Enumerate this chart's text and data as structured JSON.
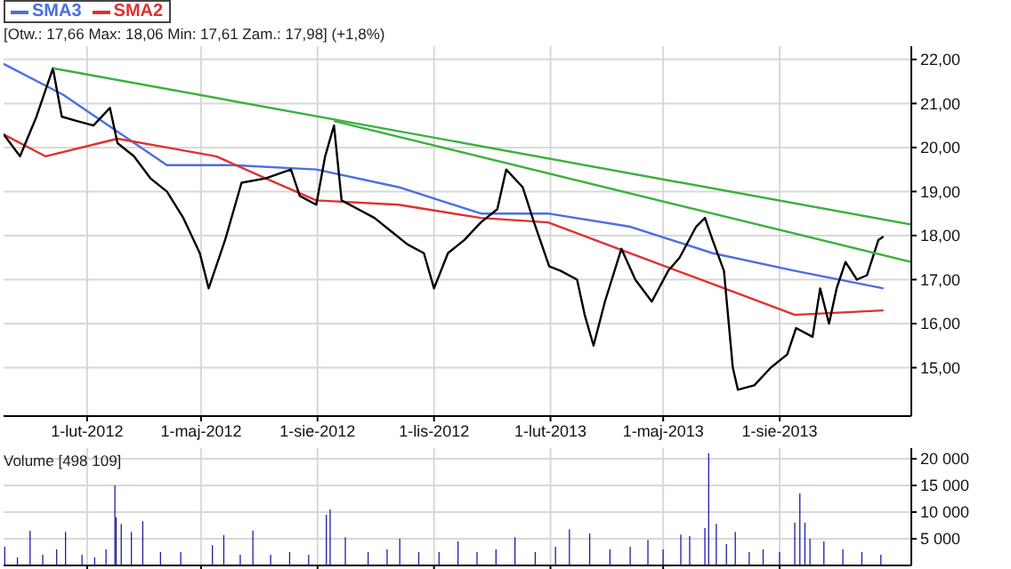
{
  "chart_data": [
    {
      "type": "line",
      "subtitle": "[Otw.: 17,66  Max: 18,06  Min: 17,61  Zam.: 17,98] (+1,8%)",
      "legend": "top left",
      "grid": true,
      "xlim": [
        "2011-11-27",
        "2013-11-13"
      ],
      "xticks": [
        {
          "value": "2012-02-01",
          "label": "1-lut-2012"
        },
        {
          "value": "2012-05-01",
          "label": "1-maj-2012"
        },
        {
          "value": "2012-08-01",
          "label": "1-sie-2012"
        },
        {
          "value": "2012-11-01",
          "label": "1-lis-2012"
        },
        {
          "value": "2013-02-01",
          "label": "1-lut-2013"
        },
        {
          "value": "2013-05-01",
          "label": "1-maj-2013"
        },
        {
          "value": "2013-08-01",
          "label": "1-sie-2013"
        }
      ],
      "ylim": [
        13.9,
        22.3
      ],
      "yticks": [
        {
          "value": 15,
          "label": "15,00"
        },
        {
          "value": 16,
          "label": "16,00"
        },
        {
          "value": 17,
          "label": "17,00"
        },
        {
          "value": 18,
          "label": "18,00"
        },
        {
          "value": 19,
          "label": "19,00"
        },
        {
          "value": 20,
          "label": "20,00"
        },
        {
          "value": 21,
          "label": "21,00"
        },
        {
          "value": 22,
          "label": "22,00"
        }
      ],
      "series": [
        {
          "name": "SMA3",
          "color": "#4a6fe0",
          "x": [
            "2011-11-27",
            "2012-01-13",
            "2012-04-04",
            "2012-05-26",
            "2012-07-31",
            "2012-10-04",
            "2012-12-08",
            "2013-01-30",
            "2013-04-05",
            "2013-06-09",
            "2013-08-13",
            "2013-10-22"
          ],
          "values": [
            21.9,
            21.2,
            19.6,
            19.6,
            19.5,
            19.1,
            18.5,
            18.5,
            18.2,
            17.6,
            17.2,
            16.8
          ]
        },
        {
          "name": "SMA2",
          "color": "#e03030",
          "x": [
            "2011-11-27",
            "2011-12-30",
            "2012-02-25",
            "2012-04-04",
            "2012-05-13",
            "2012-06-21",
            "2012-07-31",
            "2012-10-04",
            "2012-12-08",
            "2013-01-30",
            "2013-04-05",
            "2013-06-09",
            "2013-08-13",
            "2013-10-22"
          ],
          "values": [
            20.3,
            19.8,
            20.2,
            20.0,
            19.8,
            19.3,
            18.8,
            18.7,
            18.4,
            18.3,
            17.6,
            16.9,
            16.2,
            16.3
          ]
        },
        {
          "color": "#000000",
          "x": [
            "2011-11-27",
            "2011-12-10",
            "2011-12-23",
            "2012-01-05",
            "2012-01-12",
            "2012-01-24",
            "2012-02-06",
            "2012-02-19",
            "2012-02-25",
            "2012-03-09",
            "2012-03-22",
            "2012-04-04",
            "2012-04-17",
            "2012-04-30",
            "2012-05-07",
            "2012-05-20",
            "2012-06-02",
            "2012-06-21",
            "2012-07-11",
            "2012-07-18",
            "2012-07-31",
            "2012-08-07",
            "2012-08-14",
            "2012-08-20",
            "2012-09-02",
            "2012-09-15",
            "2012-09-28",
            "2012-10-11",
            "2012-10-24",
            "2012-11-01",
            "2012-11-12",
            "2012-11-25",
            "2012-12-08",
            "2012-12-21",
            "2012-12-28",
            "2013-01-10",
            "2013-01-19",
            "2013-01-31",
            "2013-02-09",
            "2013-02-22",
            "2013-02-28",
            "2013-03-07",
            "2013-03-16",
            "2013-03-29",
            "2013-04-09",
            "2013-04-22",
            "2013-05-05",
            "2013-05-14",
            "2013-05-27",
            "2013-06-03",
            "2013-06-09",
            "2013-06-18",
            "2013-06-25",
            "2013-06-29",
            "2013-07-12",
            "2013-07-25",
            "2013-08-07",
            "2013-08-14",
            "2013-08-27",
            "2013-09-02",
            "2013-09-09",
            "2013-09-15",
            "2013-09-22",
            "2013-10-01",
            "2013-10-09",
            "2013-10-18",
            "2013-10-22"
          ],
          "values": [
            20.3,
            19.8,
            20.7,
            21.8,
            20.7,
            20.6,
            20.5,
            20.9,
            20.1,
            19.8,
            19.3,
            19.0,
            18.4,
            17.6,
            16.8,
            17.9,
            19.2,
            19.3,
            19.5,
            18.9,
            18.7,
            19.8,
            20.5,
            18.8,
            18.6,
            18.4,
            18.1,
            17.8,
            17.6,
            16.8,
            17.6,
            17.9,
            18.3,
            18.6,
            19.5,
            19.1,
            18.3,
            17.3,
            17.2,
            17.0,
            16.2,
            15.5,
            16.5,
            17.7,
            17.0,
            16.5,
            17.2,
            17.5,
            18.2,
            18.4,
            17.9,
            17.2,
            15.0,
            14.5,
            14.6,
            15.0,
            15.3,
            15.9,
            15.7,
            16.8,
            16.0,
            16.8,
            17.4,
            17.0,
            17.1,
            17.9,
            17.98
          ]
        },
        {
          "color": "#3cb03c",
          "x": [
            "2012-01-05",
            "2013-11-13"
          ],
          "values": [
            21.8,
            18.25
          ]
        },
        {
          "color": "#3cb03c",
          "x": [
            "2012-08-14",
            "2013-11-13"
          ],
          "values": [
            20.6,
            17.4
          ]
        }
      ]
    },
    {
      "type": "bar",
      "title": "Volume [498 109]",
      "grid": true,
      "tick_labels": "y",
      "color": "#1a1aa8",
      "xlim": [
        "2011-11-27",
        "2013-11-13"
      ],
      "xticks": [
        {
          "value": "2012-02-01",
          "label": null
        },
        {
          "value": "2012-05-01",
          "label": null
        },
        {
          "value": "2012-08-01",
          "label": null
        },
        {
          "value": "2012-11-01",
          "label": null
        },
        {
          "value": "2013-02-01",
          "label": null
        },
        {
          "value": "2013-05-01",
          "label": null
        },
        {
          "value": "2013-08-01",
          "label": null
        }
      ],
      "ylim": [
        0,
        22000
      ],
      "yticks": [
        {
          "value": 5000,
          "label": "5 000"
        },
        {
          "value": 10000,
          "label": "10 000"
        },
        {
          "value": 15000,
          "label": "15 000"
        },
        {
          "value": 20000,
          "label": "20 000"
        }
      ],
      "x": [
        "2011-11-28",
        "2011-12-08",
        "2011-12-18",
        "2011-12-28",
        "2012-01-08",
        "2012-01-15",
        "2012-01-28",
        "2012-02-07",
        "2012-02-16",
        "2012-02-23",
        "2012-02-24",
        "2012-02-28",
        "2012-03-07",
        "2012-03-16",
        "2012-03-30",
        "2012-04-15",
        "2012-05-10",
        "2012-05-19",
        "2012-06-01",
        "2012-06-11",
        "2012-06-25",
        "2012-07-10",
        "2012-07-25",
        "2012-08-08",
        "2012-08-11",
        "2012-08-23",
        "2012-09-10",
        "2012-09-25",
        "2012-10-05",
        "2012-10-20",
        "2012-11-05",
        "2012-11-20",
        "2012-12-05",
        "2012-12-20",
        "2013-01-04",
        "2013-01-20",
        "2013-02-05",
        "2013-02-16",
        "2013-03-04",
        "2013-03-20",
        "2013-04-05",
        "2013-04-19",
        "2013-05-01",
        "2013-05-15",
        "2013-05-22",
        "2013-06-03",
        "2013-06-06",
        "2013-06-12",
        "2013-06-20",
        "2013-06-27",
        "2013-07-08",
        "2013-07-19",
        "2013-08-01",
        "2013-08-13",
        "2013-08-17",
        "2013-08-21",
        "2013-08-25",
        "2013-09-05",
        "2013-09-20",
        "2013-10-05",
        "2013-10-20"
      ],
      "values": [
        3500,
        1500,
        6500,
        2000,
        3000,
        6300,
        2000,
        1500,
        3000,
        15000,
        9000,
        7800,
        6300,
        8300,
        2500,
        2500,
        3800,
        5700,
        2000,
        6500,
        2000,
        2500,
        2000,
        9500,
        10500,
        5300,
        2500,
        3000,
        5000,
        2500,
        2500,
        4500,
        2500,
        3000,
        5300,
        2500,
        3500,
        6800,
        6000,
        3000,
        3500,
        4800,
        3000,
        5800,
        5500,
        7000,
        21000,
        7800,
        4000,
        6300,
        2500,
        3000,
        2500,
        8000,
        13500,
        8000,
        5000,
        4500,
        3000,
        2500,
        2000
      ]
    }
  ]
}
